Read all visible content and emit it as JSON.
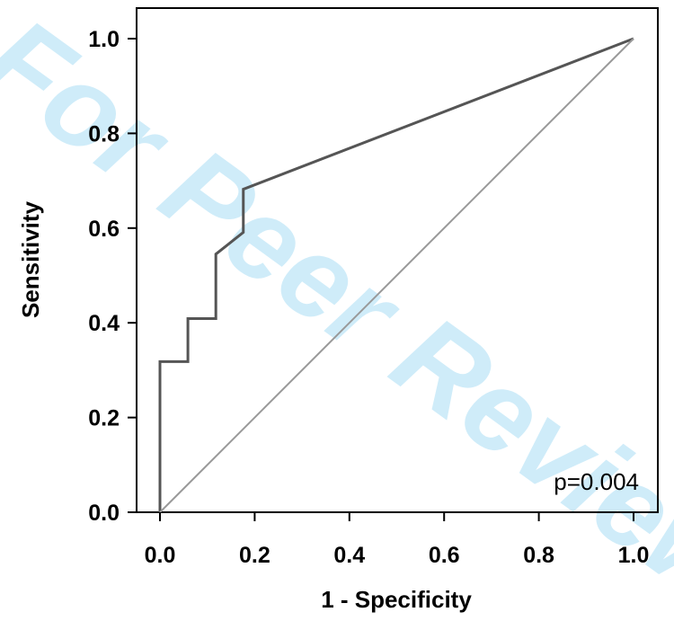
{
  "chart_data": {
    "type": "line",
    "xlabel": "1 - Specificity",
    "ylabel": "Sensitivity",
    "xlim": [
      0.0,
      1.0
    ],
    "ylim": [
      0.0,
      1.0
    ],
    "x_ticks": [
      "0.0",
      "0.2",
      "0.4",
      "0.6",
      "0.8",
      "1.0"
    ],
    "y_ticks": [
      "0.0",
      "0.2",
      "0.4",
      "0.6",
      "0.8",
      "1.0"
    ],
    "grid": false,
    "series": [
      {
        "x": [
          0.0,
          0.0,
          0.059,
          0.059,
          0.118,
          0.118,
          0.176,
          0.176,
          1.0
        ],
        "y": [
          0.0,
          0.318,
          0.318,
          0.409,
          0.409,
          0.545,
          0.591,
          0.682,
          1.0
        ],
        "color": "#555555"
      },
      {
        "x": [
          0.0,
          1.0
        ],
        "y": [
          0.0,
          1.0
        ],
        "color": "#999999"
      }
    ],
    "annotations": [
      {
        "text": "p=0.004",
        "position": "bottom-right"
      }
    ]
  },
  "watermark": {
    "text": "For Peer Review",
    "color": "#bfe6f7"
  }
}
